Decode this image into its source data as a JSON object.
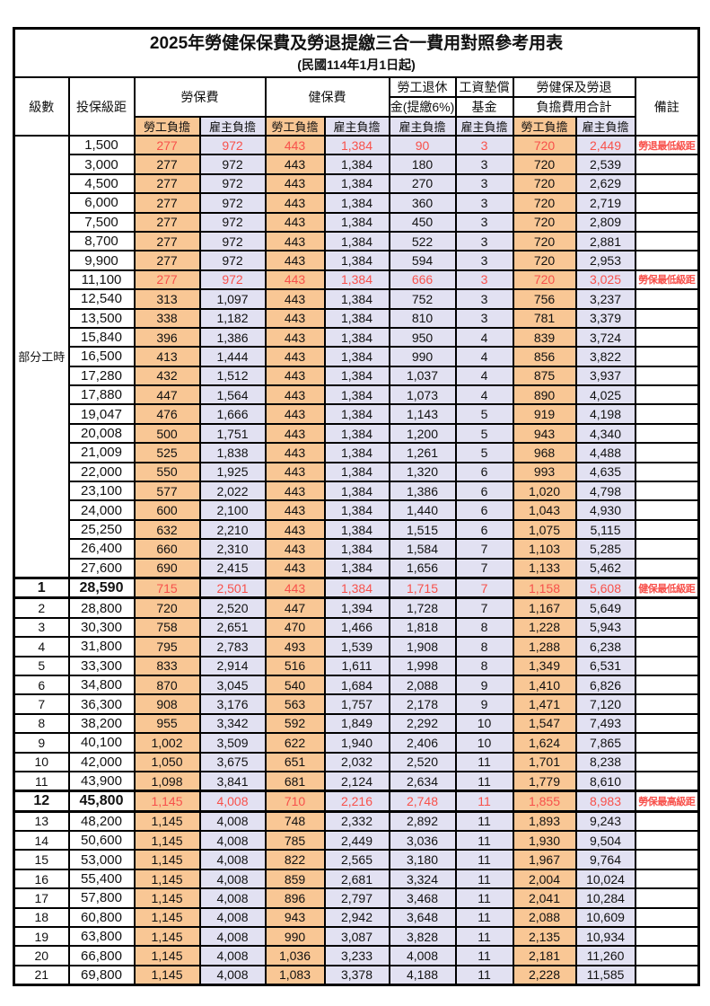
{
  "title": "2025年勞健保保費及勞退提繳三合一費用對照參考用表",
  "subtitle": "(民國114年1月1日起)",
  "colors": {
    "employee_bg": "#F9C795",
    "employer_bg": "#E2E1F2",
    "highlight_red": "#F8514B",
    "border": "#000000"
  },
  "header": {
    "level": "級數",
    "bracket": "投保級距",
    "labor_fee": "勞保費",
    "health_fee": "健保費",
    "pension_line1": "勞工退休",
    "pension_line2": "金(提繳6%)",
    "wage_fund_line1": "工資墊償",
    "wage_fund_line2": "基金",
    "total_line1": "勞健保及勞退",
    "total_line2": "負擔費用合計",
    "remark": "備註",
    "employee": "勞工負擔",
    "employer": "雇主負擔"
  },
  "part_time": {
    "label": "部分工時",
    "span": 23
  },
  "rows": [
    {
      "lv": "",
      "br": "1,500",
      "v": [
        "277",
        "972",
        "443",
        "1,384",
        "90",
        "3",
        "720",
        "2,449"
      ],
      "note": "勞退最低級距",
      "hl": "red"
    },
    {
      "lv": "",
      "br": "3,000",
      "v": [
        "277",
        "972",
        "443",
        "1,384",
        "180",
        "3",
        "720",
        "2,539"
      ],
      "note": "",
      "hl": ""
    },
    {
      "lv": "",
      "br": "4,500",
      "v": [
        "277",
        "972",
        "443",
        "1,384",
        "270",
        "3",
        "720",
        "2,629"
      ],
      "note": "",
      "hl": ""
    },
    {
      "lv": "",
      "br": "6,000",
      "v": [
        "277",
        "972",
        "443",
        "1,384",
        "360",
        "3",
        "720",
        "2,719"
      ],
      "note": "",
      "hl": ""
    },
    {
      "lv": "",
      "br": "7,500",
      "v": [
        "277",
        "972",
        "443",
        "1,384",
        "450",
        "3",
        "720",
        "2,809"
      ],
      "note": "",
      "hl": ""
    },
    {
      "lv": "",
      "br": "8,700",
      "v": [
        "277",
        "972",
        "443",
        "1,384",
        "522",
        "3",
        "720",
        "2,881"
      ],
      "note": "",
      "hl": ""
    },
    {
      "lv": "",
      "br": "9,900",
      "v": [
        "277",
        "972",
        "443",
        "1,384",
        "594",
        "3",
        "720",
        "2,953"
      ],
      "note": "",
      "hl": ""
    },
    {
      "lv": "",
      "br": "11,100",
      "v": [
        "277",
        "972",
        "443",
        "1,384",
        "666",
        "3",
        "720",
        "3,025"
      ],
      "note": "勞保最低級距",
      "hl": "red"
    },
    {
      "lv": "",
      "br": "12,540",
      "v": [
        "313",
        "1,097",
        "443",
        "1,384",
        "752",
        "3",
        "756",
        "3,237"
      ],
      "note": "",
      "hl": ""
    },
    {
      "lv": "",
      "br": "13,500",
      "v": [
        "338",
        "1,182",
        "443",
        "1,384",
        "810",
        "3",
        "781",
        "3,379"
      ],
      "note": "",
      "hl": ""
    },
    {
      "lv": "",
      "br": "15,840",
      "v": [
        "396",
        "1,386",
        "443",
        "1,384",
        "950",
        "4",
        "839",
        "3,724"
      ],
      "note": "",
      "hl": ""
    },
    {
      "lv": "",
      "br": "16,500",
      "v": [
        "413",
        "1,444",
        "443",
        "1,384",
        "990",
        "4",
        "856",
        "3,822"
      ],
      "note": "",
      "hl": ""
    },
    {
      "lv": "",
      "br": "17,280",
      "v": [
        "432",
        "1,512",
        "443",
        "1,384",
        "1,037",
        "4",
        "875",
        "3,937"
      ],
      "note": "",
      "hl": ""
    },
    {
      "lv": "",
      "br": "17,880",
      "v": [
        "447",
        "1,564",
        "443",
        "1,384",
        "1,073",
        "4",
        "890",
        "4,025"
      ],
      "note": "",
      "hl": ""
    },
    {
      "lv": "",
      "br": "19,047",
      "v": [
        "476",
        "1,666",
        "443",
        "1,384",
        "1,143",
        "5",
        "919",
        "4,198"
      ],
      "note": "",
      "hl": ""
    },
    {
      "lv": "",
      "br": "20,008",
      "v": [
        "500",
        "1,751",
        "443",
        "1,384",
        "1,200",
        "5",
        "943",
        "4,340"
      ],
      "note": "",
      "hl": ""
    },
    {
      "lv": "",
      "br": "21,009",
      "v": [
        "525",
        "1,838",
        "443",
        "1,384",
        "1,261",
        "5",
        "968",
        "4,488"
      ],
      "note": "",
      "hl": ""
    },
    {
      "lv": "",
      "br": "22,000",
      "v": [
        "550",
        "1,925",
        "443",
        "1,384",
        "1,320",
        "6",
        "993",
        "4,635"
      ],
      "note": "",
      "hl": ""
    },
    {
      "lv": "",
      "br": "23,100",
      "v": [
        "577",
        "2,022",
        "443",
        "1,384",
        "1,386",
        "6",
        "1,020",
        "4,798"
      ],
      "note": "",
      "hl": ""
    },
    {
      "lv": "",
      "br": "24,000",
      "v": [
        "600",
        "2,100",
        "443",
        "1,384",
        "1,440",
        "6",
        "1,043",
        "4,930"
      ],
      "note": "",
      "hl": ""
    },
    {
      "lv": "",
      "br": "25,250",
      "v": [
        "632",
        "2,210",
        "443",
        "1,384",
        "1,515",
        "6",
        "1,075",
        "5,115"
      ],
      "note": "",
      "hl": ""
    },
    {
      "lv": "",
      "br": "26,400",
      "v": [
        "660",
        "2,310",
        "443",
        "1,384",
        "1,584",
        "7",
        "1,103",
        "5,285"
      ],
      "note": "",
      "hl": ""
    },
    {
      "lv": "",
      "br": "27,600",
      "v": [
        "690",
        "2,415",
        "443",
        "1,384",
        "1,656",
        "7",
        "1,133",
        "5,462"
      ],
      "note": "",
      "hl": ""
    },
    {
      "lv": "1",
      "br": "28,590",
      "v": [
        "715",
        "2,501",
        "443",
        "1,384",
        "1,715",
        "7",
        "1,158",
        "5,608"
      ],
      "note": "健保最低級距",
      "hl": "red-em"
    },
    {
      "lv": "2",
      "br": "28,800",
      "v": [
        "720",
        "2,520",
        "447",
        "1,394",
        "1,728",
        "7",
        "1,167",
        "5,649"
      ],
      "note": "",
      "hl": ""
    },
    {
      "lv": "3",
      "br": "30,300",
      "v": [
        "758",
        "2,651",
        "470",
        "1,466",
        "1,818",
        "8",
        "1,228",
        "5,943"
      ],
      "note": "",
      "hl": ""
    },
    {
      "lv": "4",
      "br": "31,800",
      "v": [
        "795",
        "2,783",
        "493",
        "1,539",
        "1,908",
        "8",
        "1,288",
        "6,238"
      ],
      "note": "",
      "hl": ""
    },
    {
      "lv": "5",
      "br": "33,300",
      "v": [
        "833",
        "2,914",
        "516",
        "1,611",
        "1,998",
        "8",
        "1,349",
        "6,531"
      ],
      "note": "",
      "hl": ""
    },
    {
      "lv": "6",
      "br": "34,800",
      "v": [
        "870",
        "3,045",
        "540",
        "1,684",
        "2,088",
        "9",
        "1,410",
        "6,826"
      ],
      "note": "",
      "hl": ""
    },
    {
      "lv": "7",
      "br": "36,300",
      "v": [
        "908",
        "3,176",
        "563",
        "1,757",
        "2,178",
        "9",
        "1,471",
        "7,120"
      ],
      "note": "",
      "hl": ""
    },
    {
      "lv": "8",
      "br": "38,200",
      "v": [
        "955",
        "3,342",
        "592",
        "1,849",
        "2,292",
        "10",
        "1,547",
        "7,493"
      ],
      "note": "",
      "hl": ""
    },
    {
      "lv": "9",
      "br": "40,100",
      "v": [
        "1,002",
        "3,509",
        "622",
        "1,940",
        "2,406",
        "10",
        "1,624",
        "7,865"
      ],
      "note": "",
      "hl": ""
    },
    {
      "lv": "10",
      "br": "42,000",
      "v": [
        "1,050",
        "3,675",
        "651",
        "2,032",
        "2,520",
        "11",
        "1,701",
        "8,238"
      ],
      "note": "",
      "hl": ""
    },
    {
      "lv": "11",
      "br": "43,900",
      "v": [
        "1,098",
        "3,841",
        "681",
        "2,124",
        "2,634",
        "11",
        "1,779",
        "8,610"
      ],
      "note": "",
      "hl": ""
    },
    {
      "lv": "12",
      "br": "45,800",
      "v": [
        "1,145",
        "4,008",
        "710",
        "2,216",
        "2,748",
        "11",
        "1,855",
        "8,983"
      ],
      "note": "勞保最高級距",
      "hl": "red-em"
    },
    {
      "lv": "13",
      "br": "48,200",
      "v": [
        "1,145",
        "4,008",
        "748",
        "2,332",
        "2,892",
        "11",
        "1,893",
        "9,243"
      ],
      "note": "",
      "hl": ""
    },
    {
      "lv": "14",
      "br": "50,600",
      "v": [
        "1,145",
        "4,008",
        "785",
        "2,449",
        "3,036",
        "11",
        "1,930",
        "9,504"
      ],
      "note": "",
      "hl": ""
    },
    {
      "lv": "15",
      "br": "53,000",
      "v": [
        "1,145",
        "4,008",
        "822",
        "2,565",
        "3,180",
        "11",
        "1,967",
        "9,764"
      ],
      "note": "",
      "hl": ""
    },
    {
      "lv": "16",
      "br": "55,400",
      "v": [
        "1,145",
        "4,008",
        "859",
        "2,681",
        "3,324",
        "11",
        "2,004",
        "10,024"
      ],
      "note": "",
      "hl": ""
    },
    {
      "lv": "17",
      "br": "57,800",
      "v": [
        "1,145",
        "4,008",
        "896",
        "2,797",
        "3,468",
        "11",
        "2,041",
        "10,284"
      ],
      "note": "",
      "hl": ""
    },
    {
      "lv": "18",
      "br": "60,800",
      "v": [
        "1,145",
        "4,008",
        "943",
        "2,942",
        "3,648",
        "11",
        "2,088",
        "10,609"
      ],
      "note": "",
      "hl": ""
    },
    {
      "lv": "19",
      "br": "63,800",
      "v": [
        "1,145",
        "4,008",
        "990",
        "3,087",
        "3,828",
        "11",
        "2,135",
        "10,934"
      ],
      "note": "",
      "hl": ""
    },
    {
      "lv": "20",
      "br": "66,800",
      "v": [
        "1,145",
        "4,008",
        "1,036",
        "3,233",
        "4,008",
        "11",
        "2,181",
        "11,260"
      ],
      "note": "",
      "hl": ""
    },
    {
      "lv": "21",
      "br": "69,800",
      "v": [
        "1,145",
        "4,008",
        "1,083",
        "3,378",
        "4,188",
        "11",
        "2,228",
        "11,585"
      ],
      "note": "",
      "hl": ""
    }
  ],
  "value_col_kinds": [
    "emp",
    "er",
    "emp",
    "er",
    "er",
    "er",
    "emp",
    "er"
  ]
}
